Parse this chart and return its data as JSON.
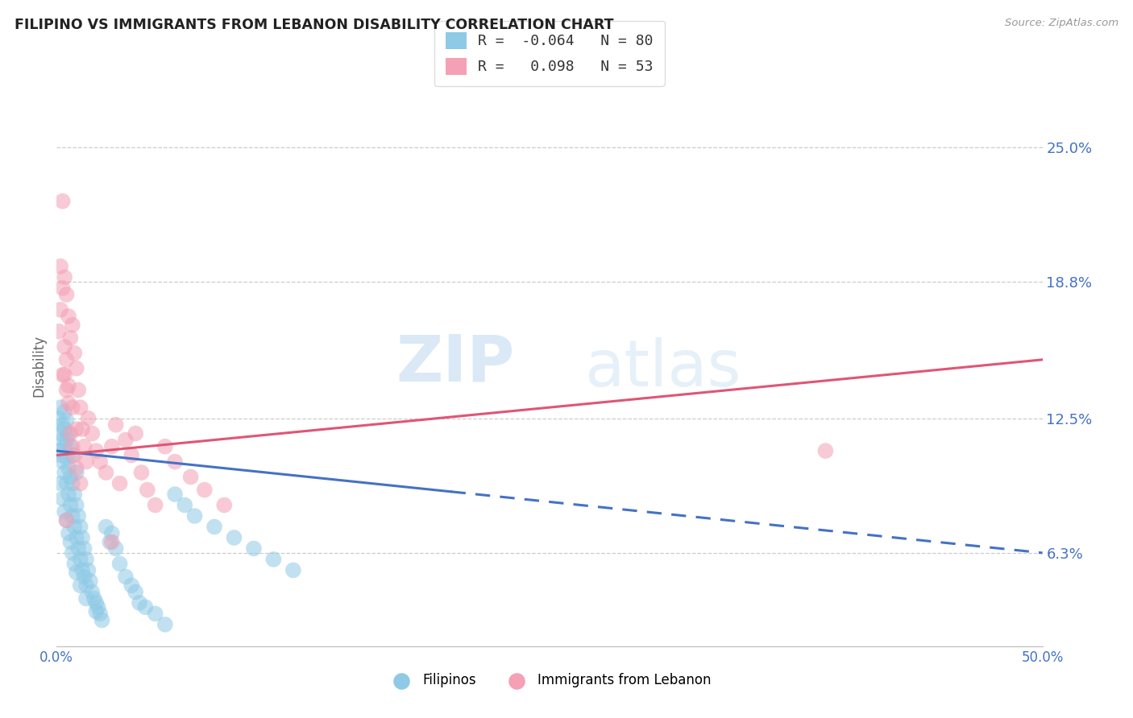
{
  "title": "FILIPINO VS IMMIGRANTS FROM LEBANON DISABILITY CORRELATION CHART",
  "source": "Source: ZipAtlas.com",
  "ylabel": "Disability",
  "ytick_labels": [
    "6.3%",
    "12.5%",
    "18.8%",
    "25.0%"
  ],
  "ytick_values": [
    0.063,
    0.125,
    0.188,
    0.25
  ],
  "xmin": 0.0,
  "xmax": 0.5,
  "ymin": 0.02,
  "ymax": 0.278,
  "legend_r1": "R = -0.064",
  "legend_n1": "N = 80",
  "legend_r2": "R =  0.098",
  "legend_n2": "N = 53",
  "color_filipino": "#8ecae6",
  "color_lebanon": "#f4a0b5",
  "color_trendline_filipino": "#4472c4",
  "color_trendline_lebanon": "#e05575",
  "color_axis_labels": "#4472c4",
  "watermark_zip": "ZIP",
  "watermark_atlas": "atlas",
  "trendline_filipino_y_start": 0.11,
  "trendline_filipino_y_end": 0.063,
  "trendline_filipino_solid_end_x": 0.2,
  "trendline_lebanon_y_start": 0.108,
  "trendline_lebanon_y_end": 0.152,
  "filipinos_x": [
    0.001,
    0.001,
    0.002,
    0.002,
    0.002,
    0.003,
    0.003,
    0.003,
    0.004,
    0.004,
    0.004,
    0.004,
    0.005,
    0.005,
    0.005,
    0.005,
    0.006,
    0.006,
    0.006,
    0.007,
    0.007,
    0.007,
    0.008,
    0.008,
    0.008,
    0.009,
    0.009,
    0.01,
    0.01,
    0.01,
    0.011,
    0.011,
    0.012,
    0.012,
    0.013,
    0.013,
    0.014,
    0.014,
    0.015,
    0.015,
    0.016,
    0.017,
    0.018,
    0.019,
    0.02,
    0.021,
    0.022,
    0.023,
    0.025,
    0.027,
    0.028,
    0.03,
    0.032,
    0.035,
    0.038,
    0.04,
    0.042,
    0.045,
    0.05,
    0.055,
    0.06,
    0.065,
    0.07,
    0.08,
    0.09,
    0.1,
    0.11,
    0.12,
    0.002,
    0.003,
    0.004,
    0.005,
    0.006,
    0.007,
    0.008,
    0.009,
    0.01,
    0.012,
    0.015,
    0.02
  ],
  "filipinos_y": [
    0.11,
    0.125,
    0.108,
    0.118,
    0.13,
    0.105,
    0.115,
    0.122,
    0.1,
    0.112,
    0.12,
    0.128,
    0.095,
    0.107,
    0.115,
    0.124,
    0.09,
    0.102,
    0.118,
    0.085,
    0.098,
    0.112,
    0.08,
    0.095,
    0.108,
    0.075,
    0.09,
    0.07,
    0.085,
    0.1,
    0.065,
    0.08,
    0.06,
    0.075,
    0.055,
    0.07,
    0.052,
    0.065,
    0.048,
    0.06,
    0.055,
    0.05,
    0.045,
    0.042,
    0.04,
    0.038,
    0.035,
    0.032,
    0.075,
    0.068,
    0.072,
    0.065,
    0.058,
    0.052,
    0.048,
    0.045,
    0.04,
    0.038,
    0.035,
    0.03,
    0.09,
    0.085,
    0.08,
    0.075,
    0.07,
    0.065,
    0.06,
    0.055,
    0.095,
    0.088,
    0.082,
    0.078,
    0.072,
    0.068,
    0.063,
    0.058,
    0.054,
    0.048,
    0.042,
    0.036
  ],
  "lebanon_x": [
    0.001,
    0.002,
    0.003,
    0.003,
    0.004,
    0.004,
    0.005,
    0.005,
    0.006,
    0.006,
    0.007,
    0.008,
    0.008,
    0.009,
    0.01,
    0.01,
    0.011,
    0.012,
    0.013,
    0.014,
    0.015,
    0.016,
    0.018,
    0.02,
    0.022,
    0.025,
    0.028,
    0.03,
    0.032,
    0.035,
    0.038,
    0.04,
    0.043,
    0.046,
    0.05,
    0.055,
    0.06,
    0.068,
    0.075,
    0.085,
    0.002,
    0.003,
    0.004,
    0.005,
    0.006,
    0.007,
    0.008,
    0.009,
    0.01,
    0.012,
    0.39,
    0.005,
    0.028
  ],
  "lebanon_y": [
    0.165,
    0.175,
    0.225,
    0.145,
    0.19,
    0.158,
    0.182,
    0.152,
    0.172,
    0.14,
    0.162,
    0.168,
    0.13,
    0.155,
    0.148,
    0.12,
    0.138,
    0.13,
    0.12,
    0.112,
    0.105,
    0.125,
    0.118,
    0.11,
    0.105,
    0.1,
    0.112,
    0.122,
    0.095,
    0.115,
    0.108,
    0.118,
    0.1,
    0.092,
    0.085,
    0.112,
    0.105,
    0.098,
    0.092,
    0.085,
    0.195,
    0.185,
    0.145,
    0.138,
    0.132,
    0.118,
    0.112,
    0.108,
    0.102,
    0.095,
    0.11,
    0.078,
    0.068
  ]
}
